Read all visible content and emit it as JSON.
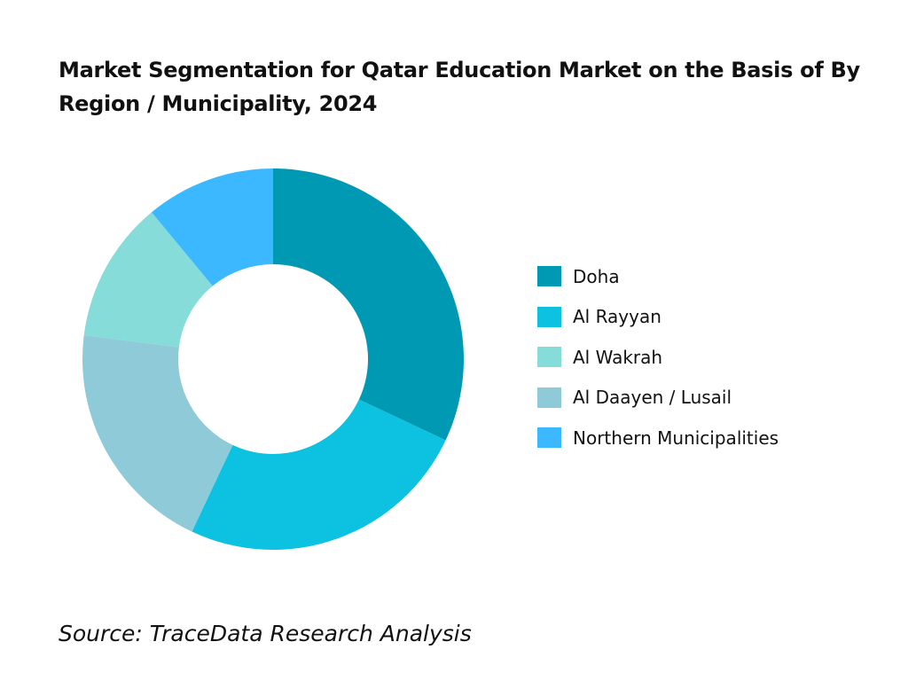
{
  "chart_data": {
    "type": "pie",
    "donut": true,
    "title": "Market Segmentation for Qatar Education Market on the Basis of By Region / Municipality, 2024",
    "categories": [
      "Doha",
      "Al Rayyan",
      "Al Wakrah",
      "Al Daayen / Lusail",
      "Northern Municipalities"
    ],
    "values": [
      32,
      25,
      12,
      20,
      11
    ],
    "unit": "%",
    "colors": [
      "#0099b4",
      "#0cc2e0",
      "#86dcd8",
      "#8ecad8",
      "#3bb8ff"
    ],
    "draw_order": [
      0,
      1,
      3,
      2,
      4
    ],
    "legend_position": "right"
  },
  "source": "Source: TraceData Research Analysis"
}
